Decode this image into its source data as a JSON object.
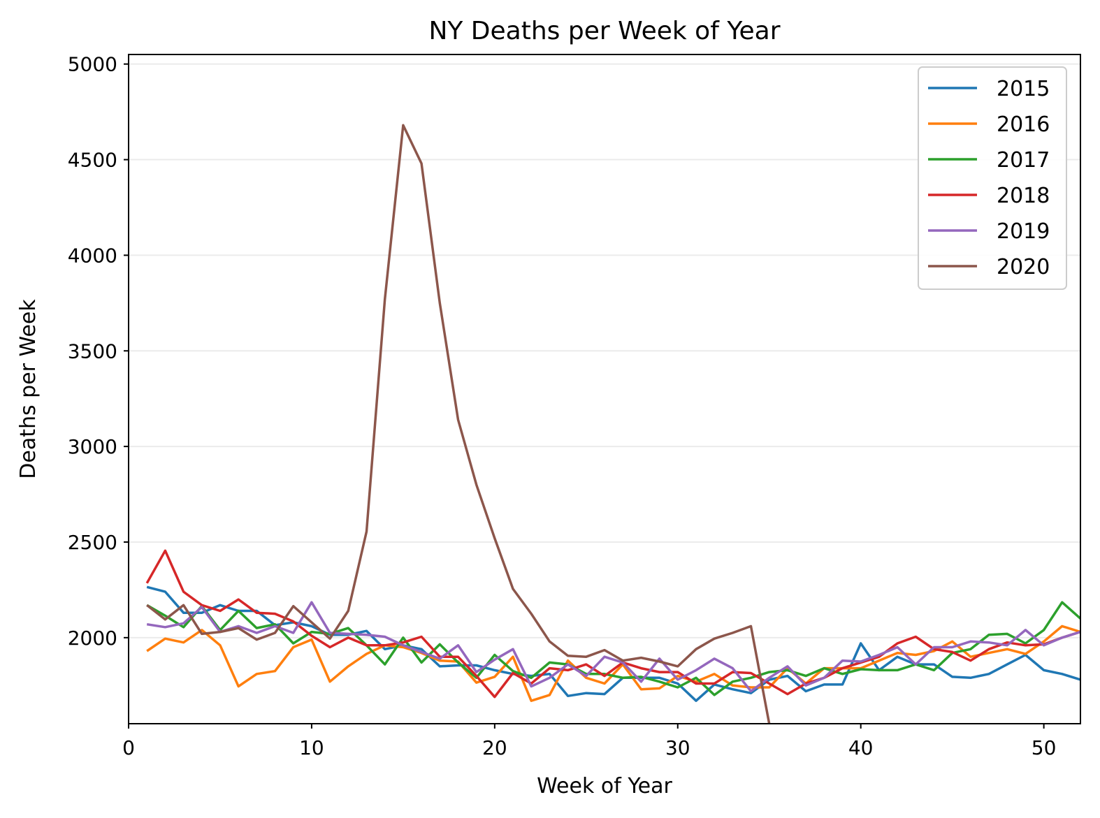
{
  "chart_data": {
    "type": "line",
    "title": "NY Deaths per Week of Year",
    "xlabel": "Week of Year",
    "ylabel": "Deaths per Week",
    "xlim": [
      0,
      52
    ],
    "ylim": [
      1550,
      5050
    ],
    "x_ticks": [
      "0",
      "10",
      "20",
      "30",
      "40",
      "50"
    ],
    "y_ticks": [
      "2000",
      "2500",
      "3000",
      "3500",
      "4000",
      "4500",
      "5000"
    ],
    "grid": "horizontal",
    "legend_position": "top-right",
    "series": [
      {
        "name": "2015",
        "color": "#1f77b4",
        "values": [
          2265,
          2240,
          2130,
          2130,
          2170,
          2140,
          2140,
          2065,
          2080,
          2060,
          2015,
          2015,
          2035,
          1940,
          1960,
          1940,
          1850,
          1855,
          1855,
          1830,
          1810,
          1800,
          1810,
          1695,
          1710,
          1705,
          1790,
          1790,
          1790,
          1760,
          1670,
          1755,
          1730,
          1710,
          1780,
          1800,
          1720,
          1755,
          1755,
          1970,
          1830,
          1900,
          1860,
          1860,
          1795,
          1790,
          1810,
          1860,
          1910,
          1830,
          1810,
          1780
        ]
      },
      {
        "name": "2016",
        "color": "#ff7f0e",
        "values": [
          1930,
          1995,
          1975,
          2040,
          1960,
          1745,
          1810,
          1825,
          1950,
          1990,
          1770,
          1850,
          1915,
          1960,
          1950,
          1920,
          1880,
          1875,
          1765,
          1795,
          1900,
          1670,
          1700,
          1880,
          1790,
          1760,
          1860,
          1730,
          1735,
          1800,
          1770,
          1810,
          1750,
          1740,
          1740,
          1840,
          1760,
          1840,
          1840,
          1840,
          1880,
          1920,
          1910,
          1930,
          1980,
          1900,
          1920,
          1940,
          1915,
          1980,
          2060,
          2030
        ]
      },
      {
        "name": "2017",
        "color": "#2ca02c",
        "values": [
          2170,
          2115,
          2055,
          2165,
          2040,
          2140,
          2050,
          2070,
          1970,
          2030,
          2020,
          2050,
          1960,
          1860,
          2000,
          1870,
          1965,
          1870,
          1790,
          1910,
          1825,
          1790,
          1870,
          1860,
          1810,
          1810,
          1790,
          1795,
          1770,
          1740,
          1790,
          1700,
          1770,
          1790,
          1820,
          1830,
          1800,
          1840,
          1810,
          1835,
          1830,
          1830,
          1860,
          1830,
          1920,
          1940,
          2015,
          2020,
          1970,
          2040,
          2185,
          2100
        ]
      },
      {
        "name": "2018",
        "color": "#d62728",
        "values": [
          2285,
          2455,
          2240,
          2170,
          2140,
          2200,
          2130,
          2125,
          2085,
          2010,
          1950,
          2000,
          1960,
          1960,
          1975,
          2005,
          1900,
          1900,
          1800,
          1690,
          1815,
          1760,
          1840,
          1830,
          1860,
          1800,
          1870,
          1840,
          1820,
          1820,
          1760,
          1760,
          1820,
          1815,
          1760,
          1705,
          1760,
          1790,
          1840,
          1870,
          1900,
          1970,
          2005,
          1940,
          1925,
          1880,
          1940,
          1975,
          1960,
          1965,
          2000,
          2030
        ]
      },
      {
        "name": "2019",
        "color": "#9467bd",
        "values": [
          2070,
          2055,
          2075,
          2160,
          2030,
          2060,
          2025,
          2060,
          2025,
          2185,
          2025,
          2020,
          2015,
          2005,
          1960,
          1925,
          1890,
          1960,
          1820,
          1885,
          1940,
          1745,
          1790,
          1860,
          1800,
          1900,
          1870,
          1770,
          1890,
          1780,
          1830,
          1890,
          1840,
          1720,
          1790,
          1850,
          1750,
          1790,
          1880,
          1875,
          1910,
          1950,
          1860,
          1950,
          1950,
          1980,
          1975,
          1960,
          2040,
          1960,
          2000,
          2030
        ]
      },
      {
        "name": "2020",
        "color": "#8c564b",
        "values": [
          2170,
          2095,
          2170,
          2020,
          2030,
          2050,
          1990,
          2025,
          2165,
          2080,
          1995,
          2140,
          2555,
          3770,
          4680,
          4480,
          3750,
          3140,
          2800,
          2520,
          2255,
          2125,
          1980,
          1905,
          1900,
          1935,
          1880,
          1895,
          1875,
          1850,
          1940,
          1995,
          2025,
          2060,
          1550
        ]
      }
    ]
  }
}
